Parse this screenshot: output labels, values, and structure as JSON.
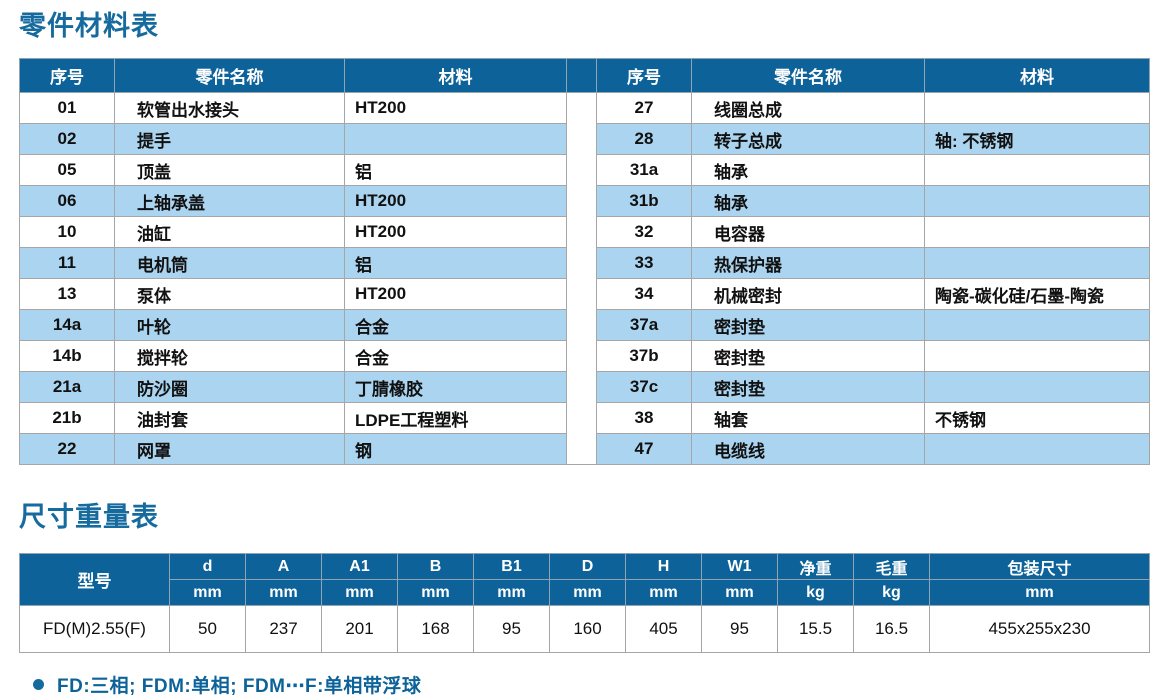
{
  "colors": {
    "header_bg": "#0d6399",
    "stripe": "#aad4ef",
    "accent_text": "#156a9e",
    "border": "#a6a6a6"
  },
  "parts_section": {
    "title": "零件材料表",
    "headers": {
      "serial": "序号",
      "name": "零件名称",
      "material": "材料"
    },
    "left_rows": [
      {
        "no": "01",
        "name": "软管出水接头",
        "material": "HT200"
      },
      {
        "no": "02",
        "name": "提手",
        "material": ""
      },
      {
        "no": "05",
        "name": "顶盖",
        "material": "铝"
      },
      {
        "no": "06",
        "name": "上轴承盖",
        "material": "HT200"
      },
      {
        "no": "10",
        "name": "油缸",
        "material": "HT200"
      },
      {
        "no": "11",
        "name": "电机筒",
        "material": "铝"
      },
      {
        "no": "13",
        "name": "泵体",
        "material": "HT200"
      },
      {
        "no": "14a",
        "name": "叶轮",
        "material": "合金"
      },
      {
        "no": "14b",
        "name": "搅拌轮",
        "material": "合金"
      },
      {
        "no": "21a",
        "name": "防沙圈",
        "material": "丁腈橡胶"
      },
      {
        "no": "21b",
        "name": "油封套",
        "material": "LDPE工程塑料"
      },
      {
        "no": "22",
        "name": "网罩",
        "material": "钢"
      }
    ],
    "right_rows": [
      {
        "no": "27",
        "name": "线圈总成",
        "material": ""
      },
      {
        "no": "28",
        "name": "转子总成",
        "material": "轴: 不锈钢"
      },
      {
        "no": "31a",
        "name": "轴承",
        "material": ""
      },
      {
        "no": "31b",
        "name": "轴承",
        "material": ""
      },
      {
        "no": "32",
        "name": "电容器",
        "material": ""
      },
      {
        "no": "33",
        "name": "热保护器",
        "material": ""
      },
      {
        "no": "34",
        "name": "机械密封",
        "material": "陶瓷-碳化硅/石墨-陶瓷"
      },
      {
        "no": "37a",
        "name": "密封垫",
        "material": ""
      },
      {
        "no": "37b",
        "name": "密封垫",
        "material": ""
      },
      {
        "no": "37c",
        "name": "密封垫",
        "material": ""
      },
      {
        "no": "38",
        "name": "轴套",
        "material": "不锈钢"
      },
      {
        "no": "47",
        "name": "电缆线",
        "material": ""
      }
    ]
  },
  "dims_section": {
    "title": "尺寸重量表",
    "model_header": "型号",
    "columns": [
      {
        "label": "d",
        "unit": "mm"
      },
      {
        "label": "A",
        "unit": "mm"
      },
      {
        "label": "A1",
        "unit": "mm"
      },
      {
        "label": "B",
        "unit": "mm"
      },
      {
        "label": "B1",
        "unit": "mm"
      },
      {
        "label": "D",
        "unit": "mm"
      },
      {
        "label": "H",
        "unit": "mm"
      },
      {
        "label": "W1",
        "unit": "mm"
      },
      {
        "label": "净重",
        "unit": "kg"
      },
      {
        "label": "毛重",
        "unit": "kg"
      },
      {
        "label": "包装尺寸",
        "unit": "mm"
      }
    ],
    "row": {
      "model": "FD(M)2.55(F)",
      "values": [
        "50",
        "237",
        "201",
        "168",
        "95",
        "160",
        "405",
        "95",
        "15.5",
        "16.5",
        "455x255x230"
      ]
    }
  },
  "footnote": {
    "text": "FD:三相; FDM:单相; FDM⋯F:单相带浮球"
  }
}
